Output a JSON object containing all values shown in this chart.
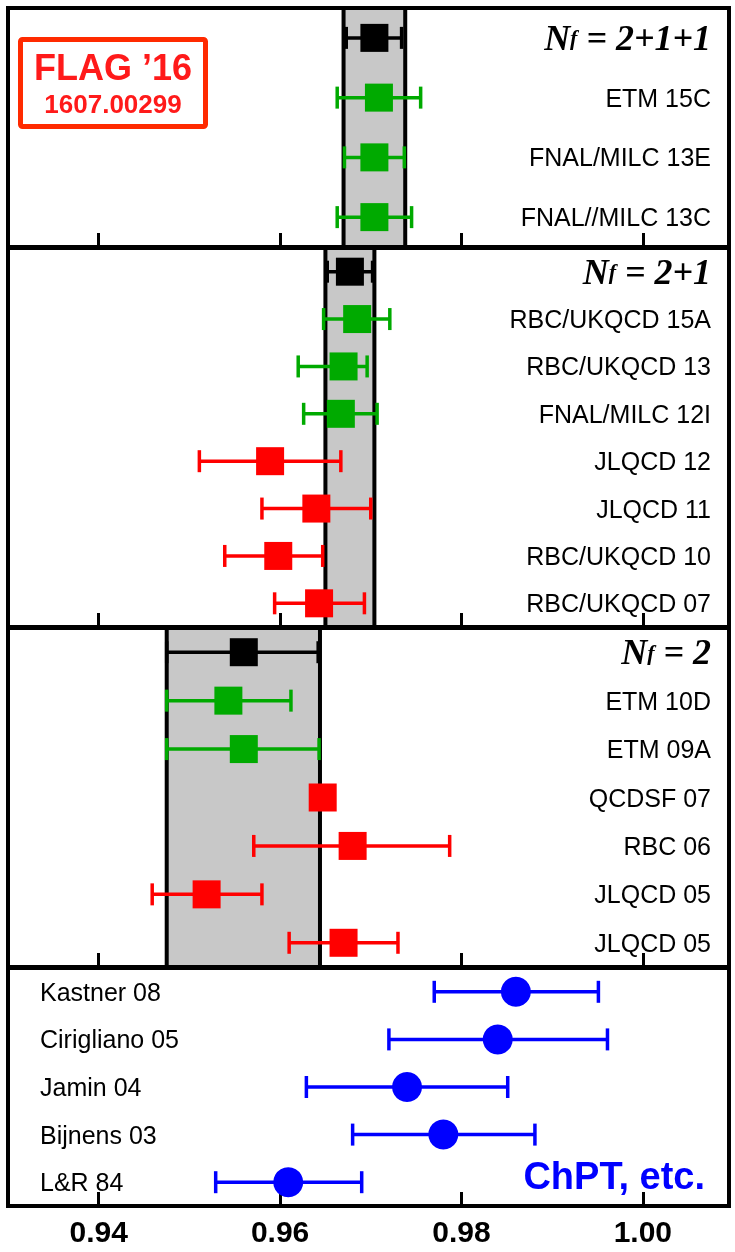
{
  "chart_data": [
    {
      "type": "scatter",
      "orientation": "horizontal",
      "categories": [
        "N$_{f}$ = 2+1+1",
        "ETM 15C",
        "FNAL/MILC 13E",
        "FNAL//MILC 13C"
      ],
      "xlim": [
        0.93,
        1.0095
      ],
      "xticks": [
        0.94,
        0.96,
        0.98,
        1.0
      ],
      "tick_labels": "y",
      "grid": false,
      "annotations": [
        "FLAG ’16",
        "1607.00299"
      ],
      "bands": [
        {
          "axis": "x",
          "from": 0.967,
          "to": 0.9738,
          "color": "#c8c8c8"
        }
      ],
      "series": [
        {
          "color": "#000000",
          "marker": "square",
          "values": [
            0.9704,
            null,
            null,
            null
          ],
          "errors": [
            [
              0.9673,
              0.9734
            ],
            null,
            null,
            null
          ]
        },
        {
          "color": "#00aa00",
          "marker": "square",
          "values": [
            null,
            0.9709,
            null,
            0.9704
          ],
          "errors": [
            null,
            [
              0.9663,
              0.9755
            ],
            null,
            [
              0.9663,
              0.9745
            ]
          ]
        },
        {
          "color": "#00aa00",
          "marker": "square",
          "values": [
            null,
            null,
            0.9704,
            null
          ],
          "errors": [
            null,
            null,
            [
              0.9671,
              0.9737
            ],
            null
          ]
        }
      ]
    },
    {
      "type": "scatter",
      "orientation": "horizontal",
      "categories": [
        "N$_{f}$ = 2+1",
        "RBC/UKQCD 15A",
        "RBC/UKQCD 13",
        "FNAL/MILC 12I",
        "JLQCD 12",
        "JLQCD 11",
        "RBC/UKQCD 10",
        "RBC/UKQCD 07"
      ],
      "xlim": [
        0.93,
        1.0095
      ],
      "xticks": [
        0.94,
        0.96,
        0.98,
        1.0
      ],
      "tick_labels": "y",
      "grid": false,
      "bands": [
        {
          "axis": "x",
          "from": 0.965,
          "to": 0.9704,
          "color": "#c8c8c8"
        }
      ],
      "series": [
        {
          "color": "#000000",
          "marker": "square",
          "values": [
            0.9677,
            null,
            null,
            null,
            null,
            null,
            null,
            null
          ],
          "errors": [
            [
              0.9652,
              0.9702
            ],
            null,
            null,
            null,
            null,
            null,
            null,
            null
          ]
        },
        {
          "color": "#00aa00",
          "marker": "square",
          "values": [
            null,
            0.9685,
            null,
            0.9667,
            null,
            null,
            null,
            null
          ],
          "errors": [
            null,
            [
              0.9648,
              0.9721
            ],
            null,
            [
              0.9626,
              0.9707
            ],
            null,
            null,
            null,
            null
          ]
        },
        {
          "color": "#00aa00",
          "marker": "square",
          "values": [
            null,
            null,
            0.967,
            null,
            null,
            null,
            null,
            null
          ],
          "errors": [
            null,
            null,
            [
              0.962,
              0.9696
            ],
            null,
            null,
            null,
            null,
            null
          ]
        },
        {
          "color": "#ff0000",
          "marker": "square",
          "values": [
            null,
            null,
            null,
            null,
            0.9589,
            0.964,
            0.9598,
            0.9643
          ],
          "errors": [
            null,
            null,
            null,
            null,
            [
              0.9511,
              0.9667
            ],
            [
              0.958,
              0.97
            ],
            [
              0.9539,
              0.9647
            ],
            [
              0.9594,
              0.9693
            ]
          ]
        }
      ]
    },
    {
      "type": "scatter",
      "orientation": "horizontal",
      "categories": [
        "N$_{f}$ = 2",
        "ETM 10D",
        "ETM 09A",
        "QCDSF 07",
        "RBC 06",
        "JLQCD 05",
        "JLQCD 05"
      ],
      "xlim": [
        0.93,
        1.0095
      ],
      "xticks": [
        0.94,
        0.96,
        0.98,
        1.0
      ],
      "tick_labels": "y",
      "grid": false,
      "bands": [
        {
          "axis": "x",
          "from": 0.9475,
          "to": 0.9644,
          "color": "#c8c8c8"
        }
      ],
      "series": [
        {
          "color": "#000000",
          "marker": "square",
          "values": [
            0.956,
            null,
            null,
            null,
            null,
            null,
            null
          ],
          "errors": [
            [
              0.9475,
              0.9642
            ],
            null,
            null,
            null,
            null,
            null,
            null
          ]
        },
        {
          "color": "#00aa00",
          "marker": "square",
          "values": [
            null,
            0.9543,
            null,
            null,
            null,
            null,
            null
          ],
          "errors": [
            null,
            [
              0.9475,
              0.9612
            ],
            null,
            null,
            null,
            null,
            null
          ]
        },
        {
          "color": "#00aa00",
          "marker": "square",
          "values": [
            null,
            null,
            0.956,
            null,
            null,
            null,
            null
          ],
          "errors": [
            null,
            null,
            [
              0.9475,
              0.9643
            ],
            null,
            null,
            null,
            null
          ]
        },
        {
          "color": "#ff0000",
          "marker": "square",
          "values": [
            null,
            null,
            null,
            0.9647,
            0.968,
            0.9519,
            0.967
          ],
          "errors": [
            null,
            null,
            null,
            null,
            [
              0.9571,
              0.9787
            ],
            [
              0.9459,
              0.958
            ],
            [
              0.961,
              0.973
            ]
          ]
        }
      ]
    },
    {
      "type": "scatter",
      "orientation": "horizontal",
      "categories": [
        "Kastner 08",
        "Cirigliano 05",
        "Jamin 04",
        "Bijnens 03",
        "L&R 84"
      ],
      "xlim": [
        0.93,
        1.0095
      ],
      "xticks": [
        0.94,
        0.96,
        0.98,
        {
          "value": 1.0,
          "label": "1.00"
        }
      ],
      "grid": false,
      "annotations": [
        "ChPT, etc."
      ],
      "series": [
        {
          "color": "#0000ff",
          "marker": "circle",
          "values": [
            0.986,
            0.984,
            0.974,
            0.978,
            0.9609
          ],
          "errors": [
            [
              0.977,
              0.9951
            ],
            [
              0.972,
              0.9961
            ],
            [
              0.9629,
              0.9851
            ],
            [
              0.968,
              0.9881
            ],
            [
              0.9529,
              0.969
            ]
          ]
        }
      ]
    }
  ]
}
